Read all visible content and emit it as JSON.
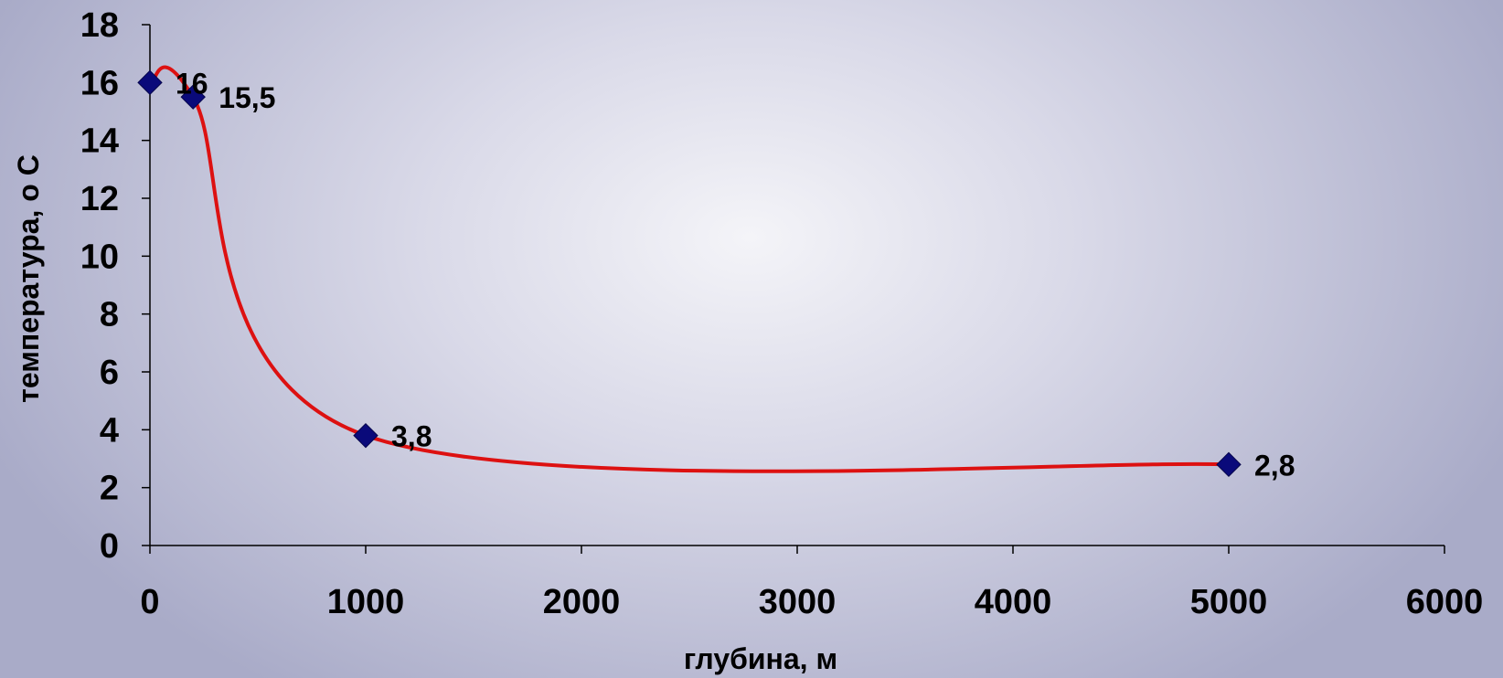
{
  "chart_data": {
    "type": "line",
    "title": "",
    "xlabel": "глубина, м",
    "ylabel": "температура, о С",
    "xlim": [
      0,
      6000
    ],
    "ylim": [
      0,
      18
    ],
    "x_ticks": [
      0,
      1000,
      2000,
      3000,
      4000,
      5000,
      6000
    ],
    "y_ticks": [
      0,
      2,
      4,
      6,
      8,
      10,
      12,
      14,
      16,
      18
    ],
    "x_tick_labels": [
      "0",
      "1000",
      "2000",
      "3000",
      "4000",
      "5000",
      "6000"
    ],
    "y_tick_labels": [
      "0",
      "2",
      "4",
      "6",
      "8",
      "10",
      "12",
      "14",
      "16",
      "18"
    ],
    "grid": false,
    "legend": "none",
    "smoothed": true,
    "line_color": "#dd1111",
    "marker_color": "#0a0a7a",
    "marker": "diamond",
    "series": [
      {
        "x": [
          0,
          200,
          1000,
          5000
        ],
        "values": [
          16,
          15.5,
          3.8,
          2.8
        ],
        "data_labels": [
          "16",
          "15,5",
          "3,8",
          "2,8"
        ]
      }
    ]
  }
}
